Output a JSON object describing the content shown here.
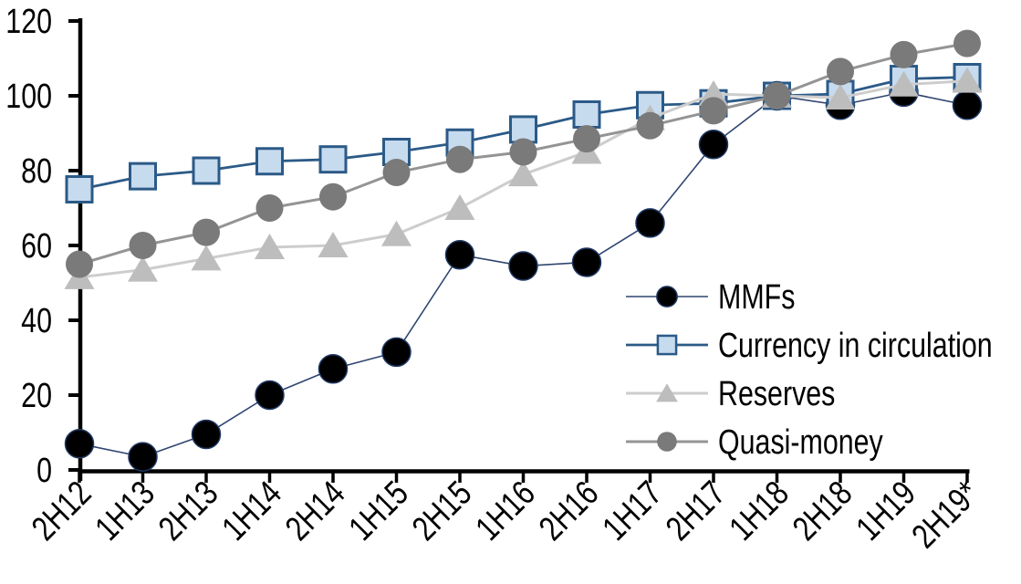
{
  "chart_data": {
    "type": "line",
    "title": "",
    "xlabel": "",
    "ylabel": "",
    "ylim": [
      0,
      120
    ],
    "y_ticks": [
      0,
      20,
      40,
      60,
      80,
      100,
      120
    ],
    "grid": "off",
    "axis_color": "#000000",
    "categories": [
      "2H12",
      "1H13",
      "2H13",
      "1H14",
      "2H14",
      "1H15",
      "2H15",
      "1H16",
      "2H16",
      "1H17",
      "2H17",
      "1H18",
      "2H18",
      "1H19",
      "2H19*"
    ],
    "series": [
      {
        "name": "MMFs",
        "marker": "dot",
        "marker_color": "#000000",
        "marker_border": "#1F3864",
        "line_color": "#2F4570",
        "line_width": 1.6,
        "values": [
          7,
          3.5,
          9.5,
          20,
          27,
          31.5,
          57.5,
          54.5,
          55.5,
          66,
          87,
          100,
          97.5,
          101,
          97.5
        ]
      },
      {
        "name": "Currency in circulation",
        "marker": "square",
        "marker_color": "#C7DBEF",
        "marker_border": "#2B5A87",
        "line_color": "#2B5A87",
        "line_width": 2.8,
        "values": [
          75,
          78.5,
          80,
          82.5,
          83,
          85,
          87.5,
          91,
          95,
          97.5,
          98,
          100,
          100.5,
          104.5,
          105
        ]
      },
      {
        "name": "Reserves",
        "marker": "triangle",
        "marker_color": "#BDBDBD",
        "marker_border": "#BDBDBD",
        "line_color": "#CDCDCD",
        "line_width": 3,
        "values": [
          51.5,
          53.5,
          56.5,
          59.5,
          60,
          63,
          70,
          79,
          85,
          94,
          100.5,
          100,
          99.5,
          103,
          104
        ]
      },
      {
        "name": "Quasi-money",
        "marker": "circle",
        "marker_color": "#7A7A7A",
        "marker_border": "#7A7A7A",
        "line_color": "#949494",
        "line_width": 3,
        "values": [
          55,
          60,
          63.5,
          70,
          73,
          79.5,
          83,
          85,
          88.5,
          92,
          96,
          100,
          106.5,
          111,
          114
        ]
      }
    ],
    "legend": {
      "position": "inside-right",
      "entries": [
        "MMFs",
        "Currency in circulation",
        "Reserves",
        "Quasi-money"
      ]
    }
  }
}
